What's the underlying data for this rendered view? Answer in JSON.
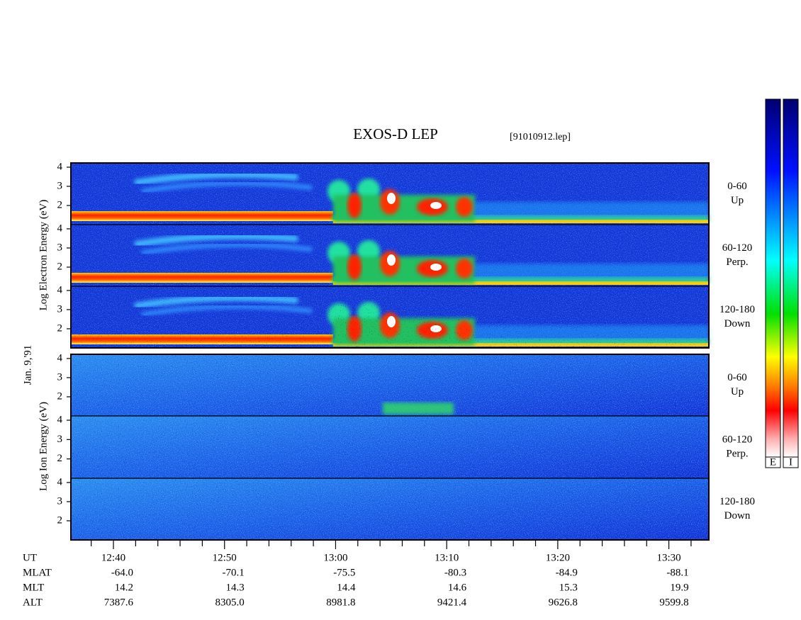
{
  "title": "EXOS-D LEP",
  "file": "[91010912.lep]",
  "date": "Jan. 9,'91",
  "electron": {
    "ylabel": "Log Electron Energy (eV)",
    "panels": [
      {
        "range": "0-60",
        "direction": "Up"
      },
      {
        "range": "60-120",
        "direction": "Perp."
      },
      {
        "range": "120-180",
        "direction": "Down"
      }
    ]
  },
  "ion": {
    "ylabel": "Log Ion Energy (eV)",
    "panels": [
      {
        "range": "0-60",
        "direction": "Up"
      },
      {
        "range": "60-120",
        "direction": "Perp."
      },
      {
        "range": "120-180",
        "direction": "Down"
      }
    ]
  },
  "axis": {
    "ylim": [
      1,
      4.22
    ],
    "yticks": [
      2,
      3,
      4
    ],
    "xlim": [
      756.17,
      813.6
    ],
    "xticks": [
      {
        "value": 760,
        "label": "12:40"
      },
      {
        "value": 770,
        "label": "12:50"
      },
      {
        "value": 780,
        "label": "13:00"
      },
      {
        "value": 790,
        "label": "13:10"
      },
      {
        "value": 800,
        "label": "13:20"
      },
      {
        "value": 810,
        "label": "13:30"
      }
    ],
    "minor_xticks": [
      758,
      762,
      764,
      766,
      768,
      772,
      774,
      776,
      778,
      782,
      784,
      786,
      788,
      792,
      794,
      796,
      798,
      802,
      804,
      806,
      808,
      812
    ]
  },
  "orbit": {
    "labels": [
      "UT",
      "MLAT",
      "MLT",
      "ALT"
    ],
    "rows": [
      [
        "-64.0",
        "-70.1",
        "-75.5",
        "-80.3",
        "-84.9",
        "-88.1"
      ],
      [
        "14.2",
        "14.3",
        "14.4",
        "14.6",
        "15.3",
        "19.9"
      ],
      [
        "7387.6",
        "8305.0",
        "8981.8",
        "9421.4",
        "9626.8",
        "9599.8"
      ]
    ]
  },
  "colorbars": [
    "E",
    "I"
  ]
}
